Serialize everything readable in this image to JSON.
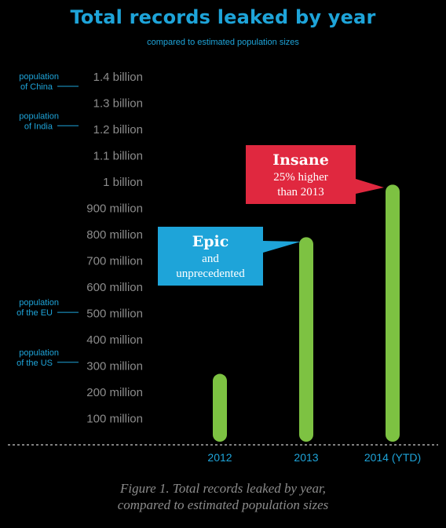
{
  "chart_data": {
    "type": "bar",
    "title": "Total records leaked by year",
    "subtitle": "compared to estimated population sizes",
    "categories": [
      "2012",
      "2013",
      "2014 (YTD)"
    ],
    "values": [
      270000000,
      790000000,
      990000000
    ],
    "y_ticks": [
      {
        "value": 100000000,
        "label": "100 million"
      },
      {
        "value": 200000000,
        "label": "200 million"
      },
      {
        "value": 300000000,
        "label": "300 million"
      },
      {
        "value": 400000000,
        "label": "400 million"
      },
      {
        "value": 500000000,
        "label": "500 million"
      },
      {
        "value": 600000000,
        "label": "600 million"
      },
      {
        "value": 700000000,
        "label": "700 million"
      },
      {
        "value": 800000000,
        "label": "800 million"
      },
      {
        "value": 900000000,
        "label": "900 million"
      },
      {
        "value": 1000000000,
        "label": "1 billion"
      },
      {
        "value": 1100000000,
        "label": "1.1 billion"
      },
      {
        "value": 1200000000,
        "label": "1.2 billion"
      },
      {
        "value": 1300000000,
        "label": "1.3 billion"
      },
      {
        "value": 1400000000,
        "label": "1.4 billion"
      }
    ],
    "ylim": [
      0,
      1400000000
    ],
    "grid": false,
    "population_markers": [
      {
        "lines": [
          "population",
          "of China"
        ],
        "value": 1370000000
      },
      {
        "lines": [
          "population",
          "of India"
        ],
        "value": 1220000000
      },
      {
        "lines": [
          "population",
          "of the EU"
        ],
        "value": 510000000
      },
      {
        "lines": [
          "population",
          "of the US"
        ],
        "value": 320000000
      }
    ],
    "annotations": [
      {
        "target": "2013",
        "heading": "Epic",
        "lines": [
          "and",
          "unprecedented"
        ],
        "color": "#1ea4d9"
      },
      {
        "target": "2014 (YTD)",
        "heading": "Insane",
        "lines": [
          "25% higher",
          "than 2013"
        ],
        "color": "#e0283f"
      }
    ],
    "colors": {
      "bar": "#7dc242",
      "accent": "#1ea4d9",
      "tick": "#8c8c8c",
      "axis": "#ffffff",
      "insane": "#e0283f"
    }
  },
  "caption": [
    "Figure 1. Total records leaked by year,",
    "compared to estimated population sizes"
  ]
}
